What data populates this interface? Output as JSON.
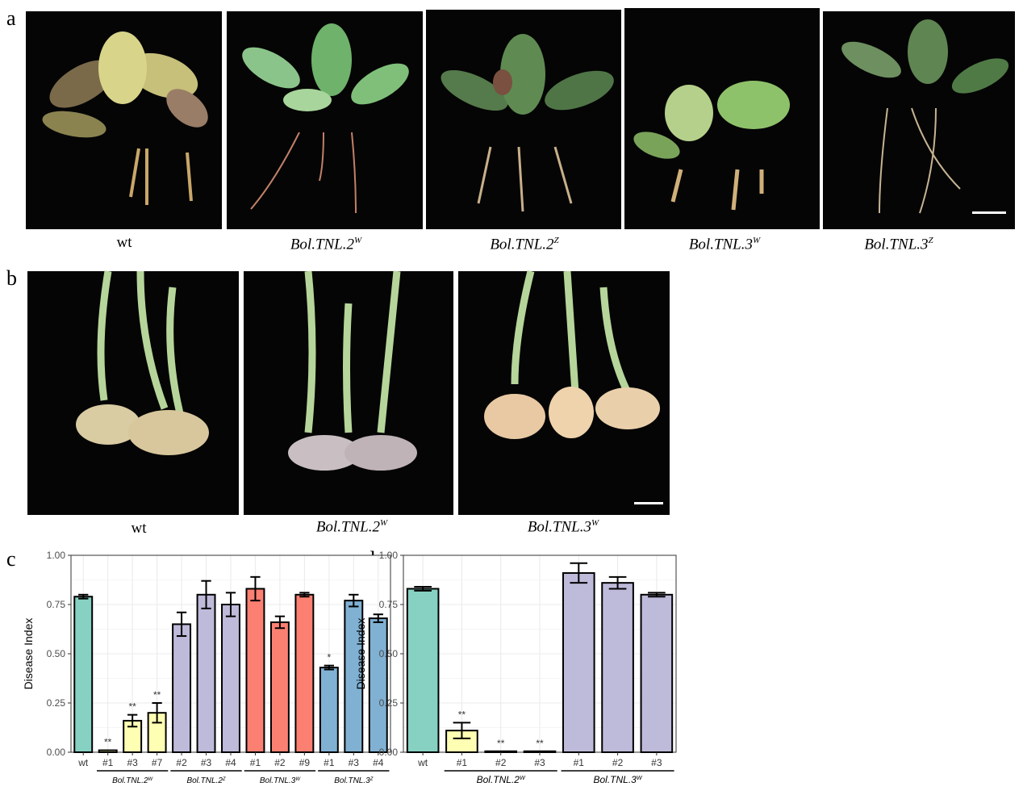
{
  "figure": {
    "panels": {
      "a": {
        "letter": "a",
        "captions": [
          {
            "text": "wt",
            "italic": false,
            "sup": ""
          },
          {
            "text": "Bol.TNL.2",
            "italic": true,
            "sup": "W"
          },
          {
            "text": "Bol.TNL.2",
            "italic": true,
            "sup": "Z"
          },
          {
            "text": "Bol.TNL.3",
            "italic": true,
            "sup": "W"
          },
          {
            "text": "Bol.TNL.3",
            "italic": true,
            "sup": "Z"
          }
        ]
      },
      "b": {
        "letter": "b",
        "captions": [
          {
            "text": "wt",
            "italic": false,
            "sup": ""
          },
          {
            "text": "Bol.TNL.2",
            "italic": true,
            "sup": "W"
          },
          {
            "text": "Bol.TNL.3",
            "italic": true,
            "sup": "W"
          }
        ]
      },
      "c": {
        "letter": "c"
      },
      "d": {
        "letter": "d"
      }
    }
  },
  "colors": {
    "wt": "#86d1c2",
    "TNL2W": "#ffffb3",
    "TNL2Z": "#bebada",
    "TNL3W": "#fb8072",
    "TNL3Z": "#80b1d3",
    "grid": "#ebebeb",
    "bar_outline": "#000000"
  },
  "chart_data": [
    {
      "type": "bar",
      "panel": "c",
      "ylabel": "Disease Index",
      "xlabel": "",
      "ylim": [
        0,
        1.0
      ],
      "yticks": [
        "0.00",
        "0.25",
        "0.50",
        "0.75",
        "1.00"
      ],
      "grid": true,
      "categories": [
        "wt",
        "#1",
        "#3",
        "#7",
        "#2",
        "#3",
        "#4",
        "#1",
        "#2",
        "#9",
        "#1",
        "#3",
        "#4"
      ],
      "values": [
        0.79,
        0.01,
        0.16,
        0.2,
        0.65,
        0.8,
        0.75,
        0.83,
        0.66,
        0.8,
        0.43,
        0.77,
        0.68
      ],
      "errors": [
        0.01,
        0.0,
        0.03,
        0.05,
        0.06,
        0.07,
        0.06,
        0.06,
        0.03,
        0.01,
        0.01,
        0.03,
        0.02
      ],
      "annotations": [
        "",
        "**",
        "**",
        "**",
        "",
        "",
        "",
        "",
        "",
        "",
        "*",
        "",
        ""
      ],
      "color_keys": [
        "wt",
        "TNL2W",
        "TNL2W",
        "TNL2W",
        "TNL2Z",
        "TNL2Z",
        "TNL2Z",
        "TNL3W",
        "TNL3W",
        "TNL3W",
        "TNL3Z",
        "TNL3Z",
        "TNL3Z"
      ],
      "groups": [
        {
          "text": "Bol.TNL.2",
          "sup": "W",
          "from": 1,
          "to": 3
        },
        {
          "text": "Bol.TNL.2",
          "sup": "Z",
          "from": 4,
          "to": 6
        },
        {
          "text": "Bol.TNL.3",
          "sup": "W",
          "from": 7,
          "to": 9
        },
        {
          "text": "Bol.TNL.3",
          "sup": "Z",
          "from": 10,
          "to": 12
        }
      ]
    },
    {
      "type": "bar",
      "panel": "d",
      "ylabel": "Disease Index",
      "xlabel": "",
      "ylim": [
        0,
        1.0
      ],
      "yticks": [
        "0.00",
        "0.25",
        "0.50",
        "0.75",
        "1.00"
      ],
      "grid": true,
      "categories": [
        "wt",
        "#1",
        "#2",
        "#3",
        "#1",
        "#2",
        "#3"
      ],
      "values": [
        0.83,
        0.11,
        0.005,
        0.005,
        0.91,
        0.86,
        0.8
      ],
      "errors": [
        0.01,
        0.04,
        0.0,
        0.0,
        0.05,
        0.03,
        0.01
      ],
      "annotations": [
        "",
        "**",
        "**",
        "**",
        "",
        "",
        ""
      ],
      "color_keys": [
        "wt",
        "TNL2W",
        "TNL2W",
        "TNL2W",
        "TNL2Z",
        "TNL2Z",
        "TNL2Z"
      ],
      "groups": [
        {
          "text": "Bol.TNL.2",
          "sup": "W",
          "from": 1,
          "to": 3
        },
        {
          "text": "Bol.TNL.3",
          "sup": "W",
          "from": 4,
          "to": 6
        }
      ]
    }
  ]
}
